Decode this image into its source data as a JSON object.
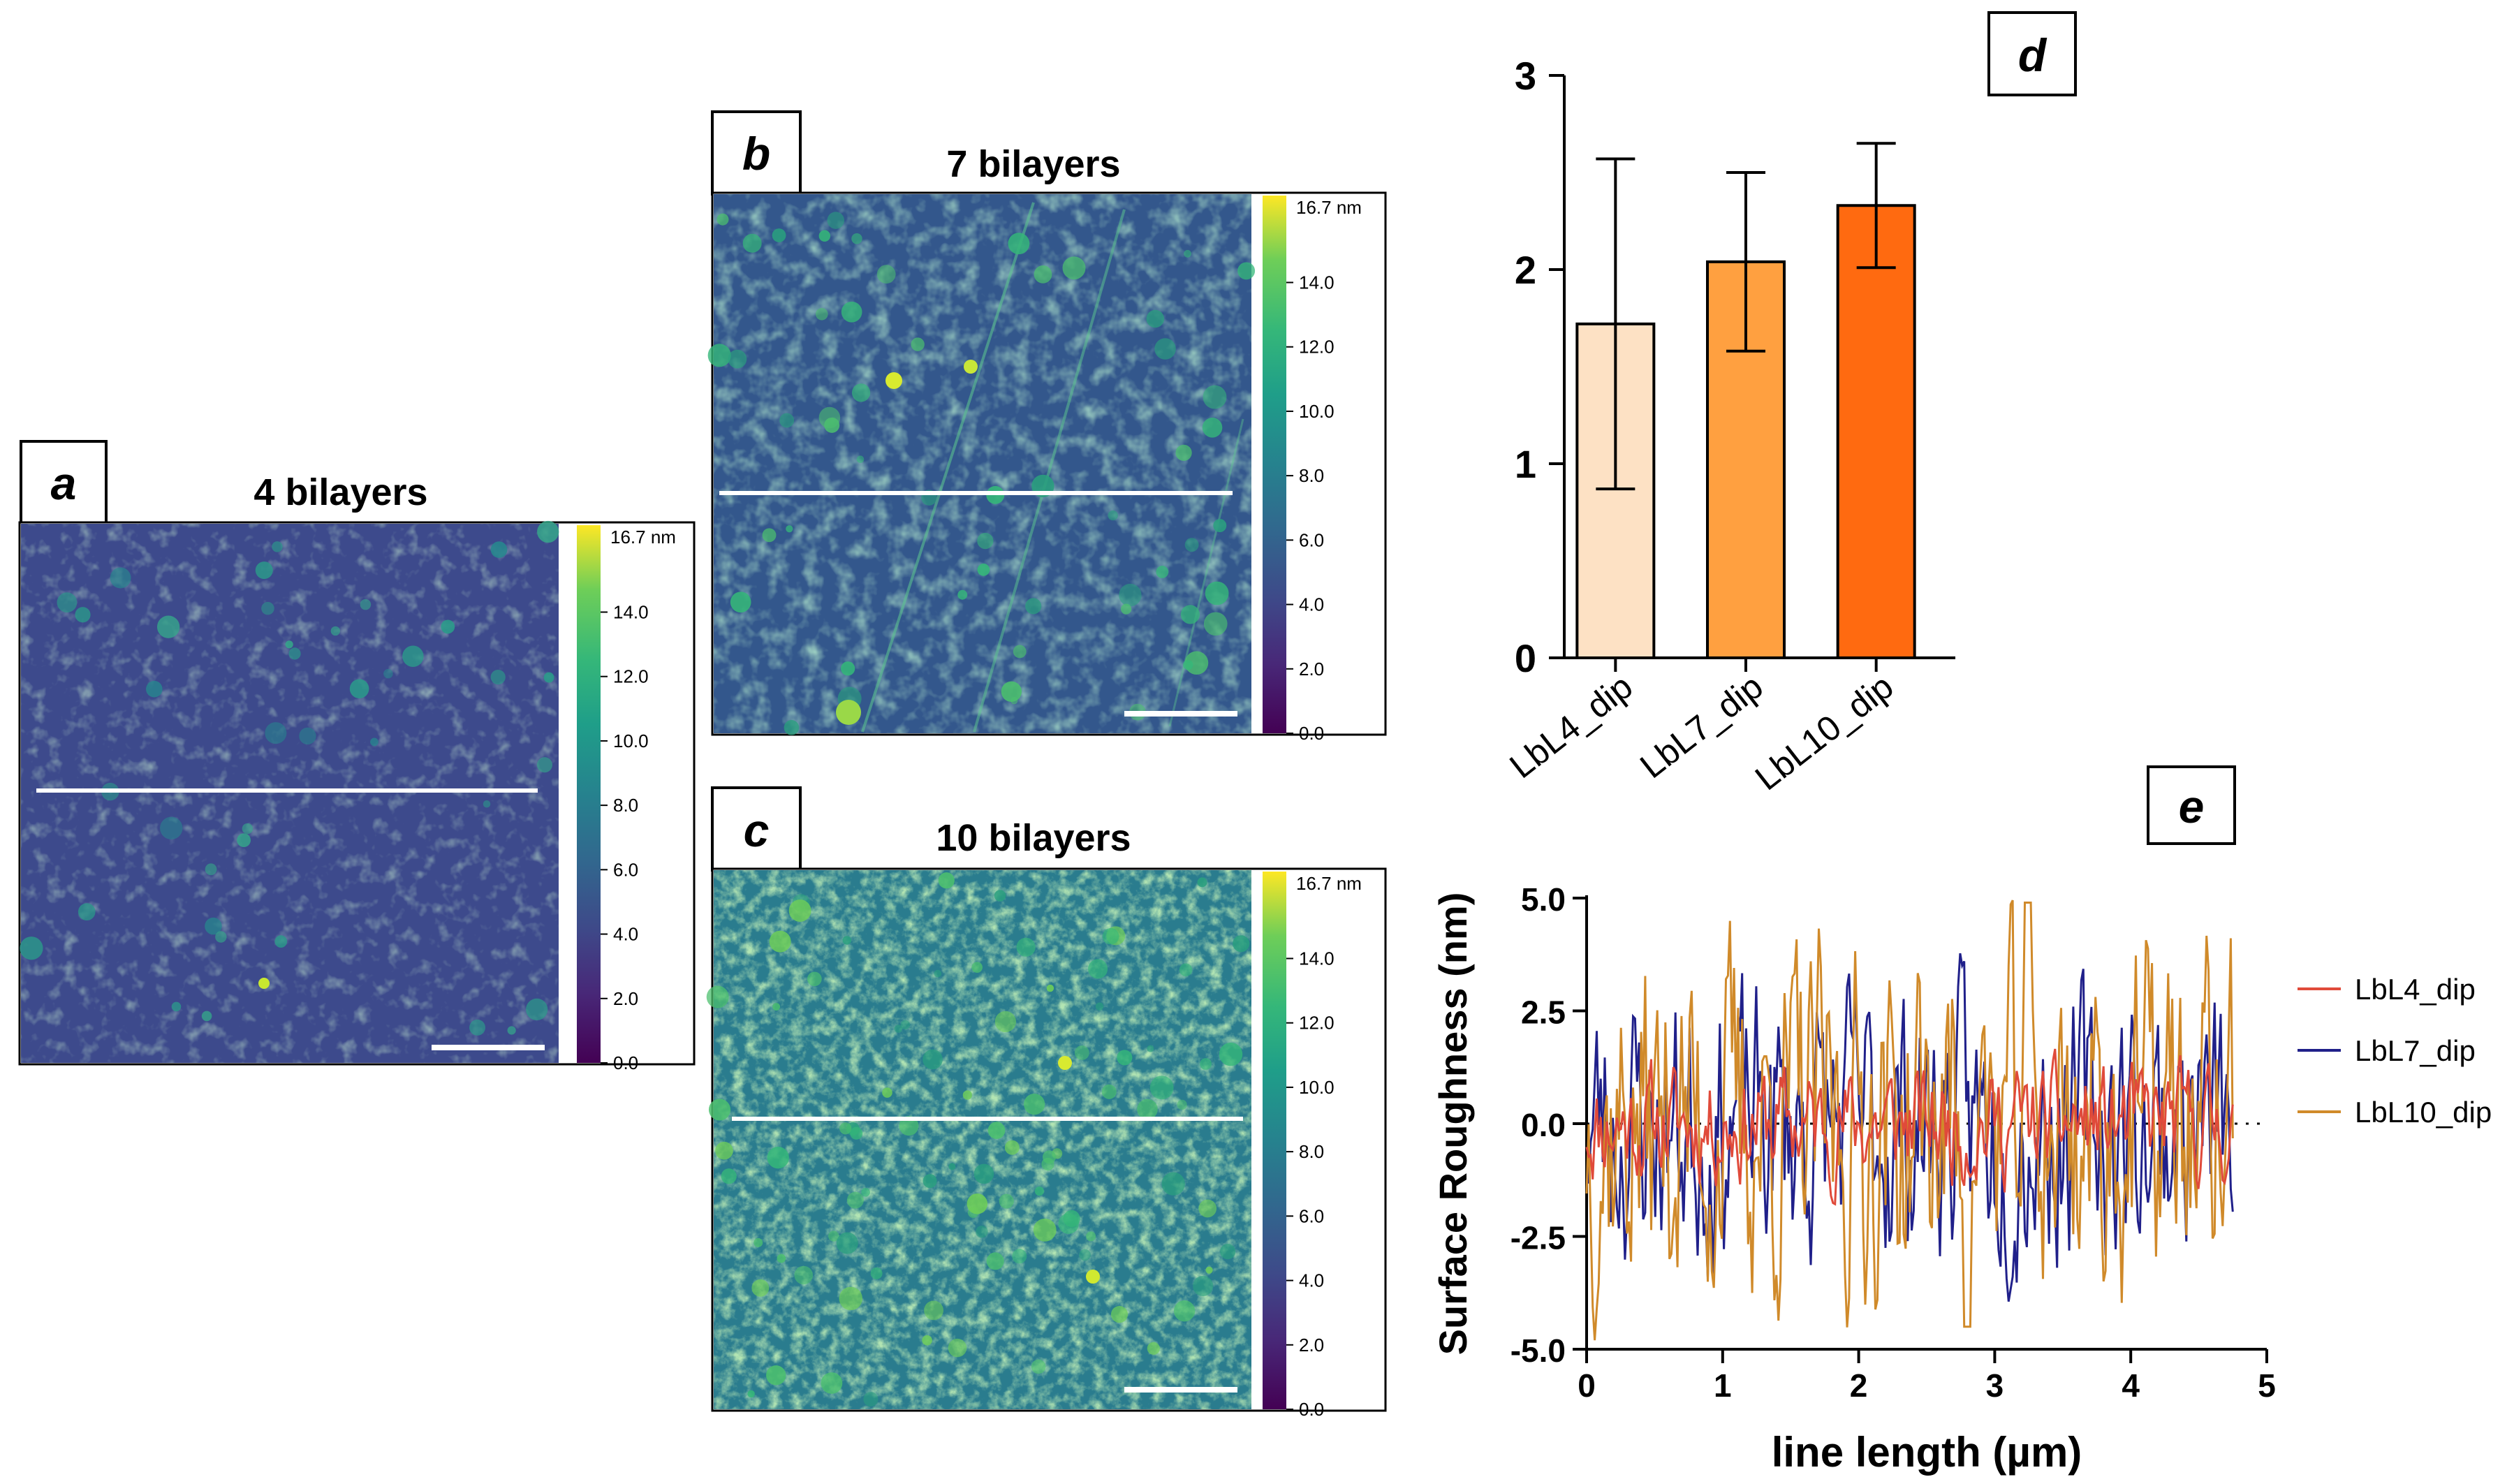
{
  "panels": [
    {
      "key": "a",
      "letter": "a",
      "title": "4 bilayers"
    },
    {
      "key": "b",
      "letter": "b",
      "title": "7 bilayers"
    },
    {
      "key": "c",
      "letter": "c",
      "title": "10 bilayers"
    }
  ],
  "colorbar": {
    "unit_label": "16.7 nm",
    "ticks": [
      "14.0",
      "12.0",
      "10.0",
      "8.0",
      "6.0",
      "4.0",
      "2.0",
      "0.0"
    ],
    "scale_max": 16.7
  },
  "colors": {
    "viridis_low": "#440154",
    "viridis_mid": "#21918c",
    "viridis_high": "#fde725",
    "bar_lbl4": "#fde1c4",
    "bar_lbl7": "#ffa040",
    "bar_lbl10": "#ff6a10",
    "line_lbl4": "#e04a3a",
    "line_lbl7": "#20208a",
    "line_lbl10": "#d08a2a"
  },
  "chart_data": [
    {
      "type": "bar",
      "panel": "d",
      "categories": [
        "LbL4_dip",
        "LbL7_dip",
        "LbL10_dip"
      ],
      "values": [
        1.72,
        2.04,
        2.33
      ],
      "error_low": [
        0.87,
        1.58,
        2.01
      ],
      "error_high": [
        2.57,
        2.5,
        2.65
      ],
      "ylim": [
        0,
        3
      ],
      "yticks": [
        "0",
        "1",
        "2",
        "3"
      ],
      "xlabel": "",
      "ylabel": ""
    },
    {
      "type": "line",
      "panel": "e",
      "xlabel": "line length (µm)",
      "ylabel": "Surface Roughness (nm)",
      "xlim": [
        0,
        5
      ],
      "ylim": [
        -5,
        5
      ],
      "xticks": [
        "0",
        "1",
        "2",
        "3",
        "4",
        "5"
      ],
      "yticks": [
        "-5.0",
        "-2.5",
        "0.0",
        "2.5",
        "5.0"
      ],
      "x_end": 4.75,
      "series": [
        {
          "name": "LbL4_dip",
          "amplitude": 1.0,
          "seed": 11
        },
        {
          "name": "LbL7_dip",
          "amplitude": 2.4,
          "seed": 23
        },
        {
          "name": "LbL10_dip",
          "amplitude": 3.1,
          "seed": 37
        }
      ]
    }
  ]
}
